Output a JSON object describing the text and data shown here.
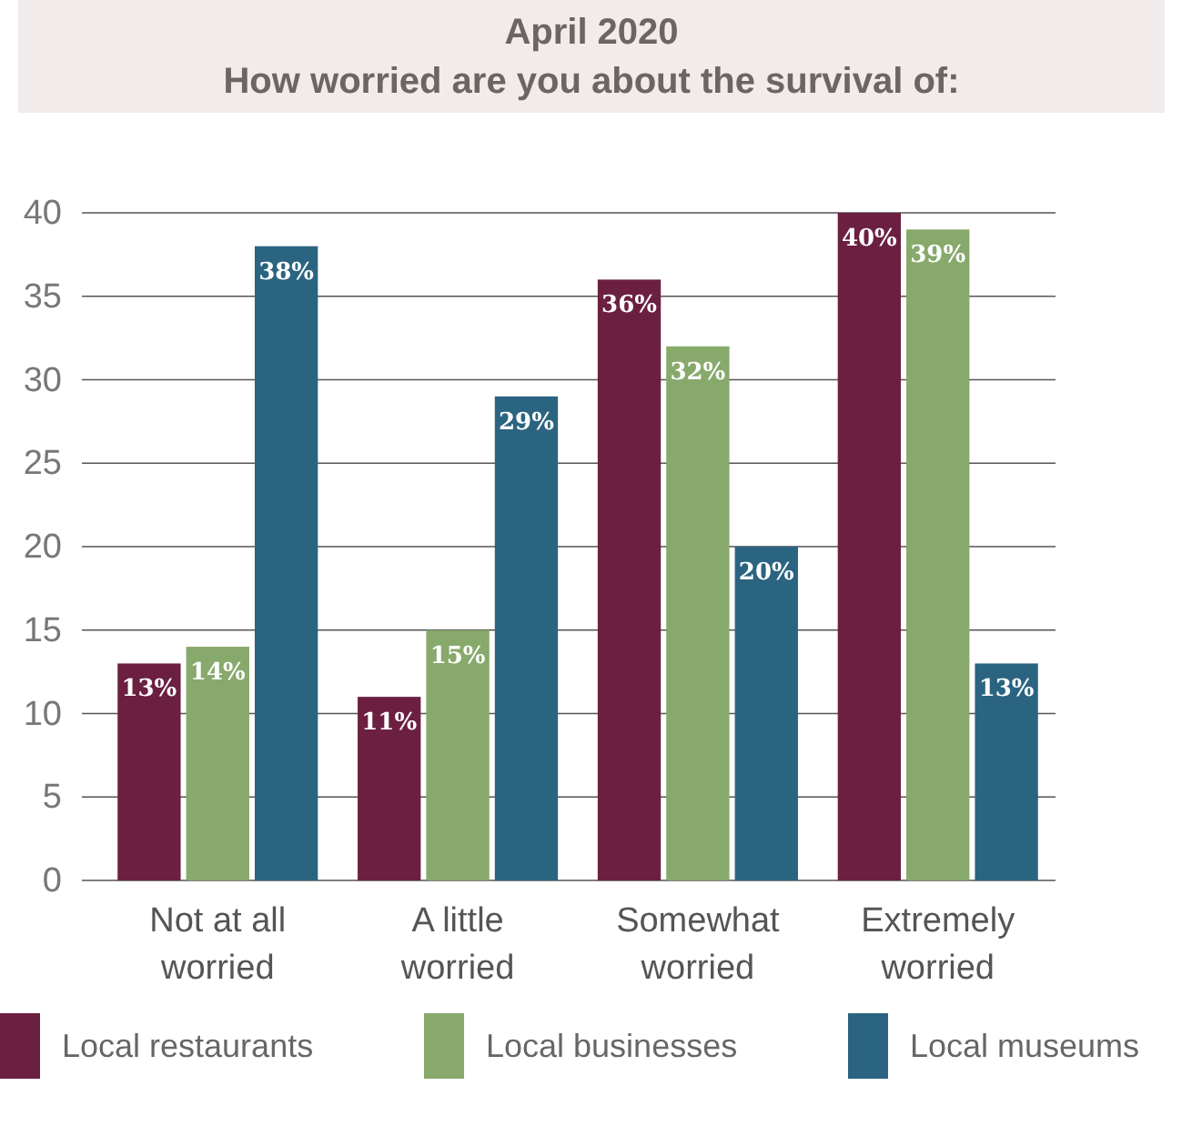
{
  "chart_data": {
    "type": "bar",
    "title": "April 2020\nHow worried are you about the survival of:",
    "categories": [
      "Not at all worried",
      "A little worried",
      "Somewhat worried",
      "Extremely worried"
    ],
    "series": [
      {
        "name": "Local restaurants",
        "color": "#6b2042",
        "values": [
          13,
          11,
          36,
          40
        ],
        "value_labels": [
          "13%",
          "11%",
          "36%",
          "40%"
        ]
      },
      {
        "name": "Local businesses",
        "color": "#87a96b",
        "values": [
          14,
          15,
          32,
          39
        ],
        "value_labels": [
          "14%",
          "15%",
          "32%",
          "39%"
        ]
      },
      {
        "name": "Local museums",
        "color": "#2b6480",
        "values": [
          38,
          29,
          20,
          13
        ],
        "value_labels": [
          "38%",
          "29%",
          "20%",
          "13%"
        ]
      }
    ],
    "ylim": [
      0,
      40
    ],
    "yticks": [
      0,
      5,
      10,
      15,
      20,
      25,
      30,
      35,
      40
    ],
    "grid": "y",
    "legend": "bottom"
  }
}
